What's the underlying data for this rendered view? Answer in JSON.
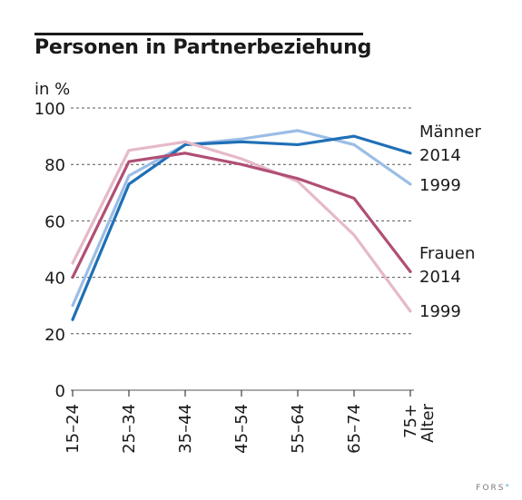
{
  "chart_data": {
    "type": "line",
    "title": "Personen in Partnerbeziehung",
    "ylabel": "in %",
    "xlabel": "Alter",
    "categories": [
      "15–24",
      "25–34",
      "35–44",
      "45–54",
      "55–64",
      "65–74",
      "75+"
    ],
    "ylim": [
      0,
      100
    ],
    "yticks": [
      0,
      20,
      40,
      60,
      80,
      100
    ],
    "grid": "horizontal dashed",
    "series": [
      {
        "group": "Männer",
        "name": "1999",
        "color": "#9bbde6",
        "values": [
          30,
          76,
          87,
          89,
          92,
          87,
          73
        ]
      },
      {
        "group": "Männer",
        "name": "2014",
        "color": "#1f6fb5",
        "values": [
          25,
          73,
          87,
          88,
          87,
          90,
          84
        ]
      },
      {
        "group": "Frauen",
        "name": "1999",
        "color": "#e6b9c8",
        "values": [
          45,
          85,
          88,
          82,
          74,
          55,
          28
        ]
      },
      {
        "group": "Frauen",
        "name": "2014",
        "color": "#b04f75",
        "values": [
          40,
          81,
          84,
          80,
          75,
          68,
          42
        ]
      }
    ],
    "labels": {
      "maenner": "Männer",
      "maenner_2014": "2014",
      "maenner_1999": "1999",
      "frauen": "Frauen",
      "frauen_2014": "2014",
      "frauen_1999": "1999"
    }
  },
  "brand": {
    "name": "FORS",
    "dot": "°",
    "dot_color": "#3a9ad9"
  }
}
